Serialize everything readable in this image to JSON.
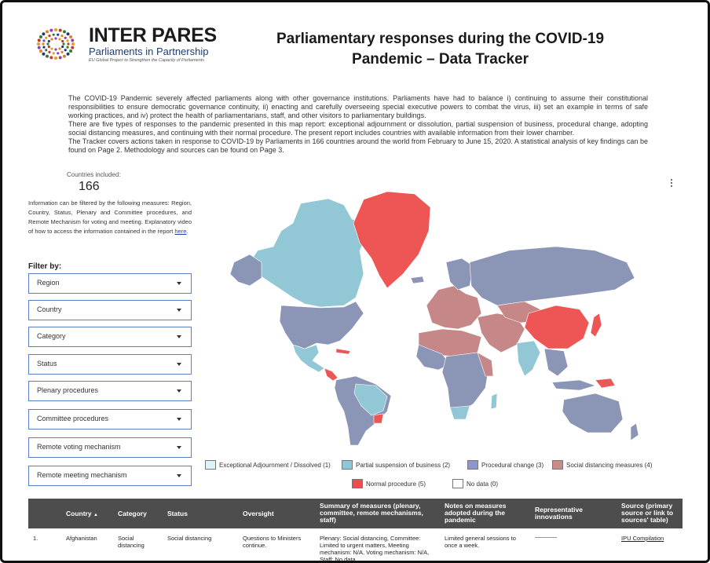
{
  "logo": {
    "title": "INTER PARES",
    "subtitle": "Parliaments in Partnership",
    "tagline": "EU Global Project to Strengthen the Capacity of Parliaments"
  },
  "page": {
    "title_line1": "Parliamentary responses during the COVID-19",
    "title_line2": "Pandemic – Data Tracker"
  },
  "intro": {
    "p1": "The COVID-19 Pandemic severely affected parliaments along with other governance institutions. Parliaments have had to balance i) continuing to assume their constitutional responsibilities to ensure democratic governance continuity, ii) enacting and carefully overseeing special executive powers to combat the virus, iii) set an example in terms of safe working practices, and iv) protect the health of parliamentarians, staff, and other visitors to parliamentary buildings.",
    "p2": "There are five types of responses to the pandemic presented in this map report: exceptional adjournment or dissolution, partial suspension of business, procedural change, adopting social distancing measures, and continuing with their normal procedure. The present report includes countries with available information from their lower chamber.",
    "p3": "The Tracker covers actions taken in response to COVID-19 by Parliaments in 166 countries around the world from February to June 15, 2020. A statistical analysis of key findings can be found on Page 2. Methodology and sources can be found on Page 3."
  },
  "countries": {
    "label": "Countries included:",
    "value": "166"
  },
  "filter_info": {
    "text": "Information can be filtered by the following measures: Region, Country, Status, Plenary and Committee procedures, and Remote Mechanism for voting and meeting.",
    "video_text": "Explanatory video of how to access the information contained in the report ",
    "link": "here",
    "period": "."
  },
  "filters": {
    "heading": "Filter by:",
    "items": [
      "Region",
      "Country",
      "Category",
      "Status",
      "Plenary procedures",
      "Committee procedures",
      "Remote voting mechanism",
      "Remote meeting mechanism"
    ]
  },
  "legend": [
    {
      "label": "Exceptional Adjournment / Dissolved (1)",
      "color": "#dff4f7"
    },
    {
      "label": "Partial suspension of business (2)",
      "color": "#8cc8d6"
    },
    {
      "label": "Procedural change (3)",
      "color": "#8f95cf"
    },
    {
      "label": "Social distancing measures (4)",
      "color": "#c98a8a"
    },
    {
      "label": "Normal procedure (5)",
      "color": "#ef4d4d"
    },
    {
      "label": "No data (0)",
      "color": "#ffffff"
    }
  ],
  "map_colors": {
    "procedural": "#8b95b5",
    "partial": "#92c7d6",
    "social": "#c58787",
    "normal": "#ee5555",
    "adjourned": "#e6f2d8"
  },
  "table": {
    "headers": {
      "country": "Country",
      "sort_arrow": "▲",
      "category": "Category",
      "status": "Status",
      "oversight": "Oversight",
      "summary": "Summary of measures (plenary, committee, remote mechanisms, staff)",
      "notes": "Notes on measures adopted during the pandemic",
      "innovations": "Representative innovations",
      "source": "Source (primary source or link to sources' table)"
    },
    "rows": [
      {
        "index": "1.",
        "country": "Afghanistan",
        "category": "Social distancing",
        "status": "Social distancing",
        "oversight": "Questions to Ministers continue.",
        "summary": "Plenary: Social distancing, Committee: Limited to urgent matters, Meeting mechanism: N/A, Voting mechanism: N/A, Staff: No data.",
        "notes": "Limited general sessions to once a week.",
        "source": "IPU Compilation"
      }
    ]
  }
}
